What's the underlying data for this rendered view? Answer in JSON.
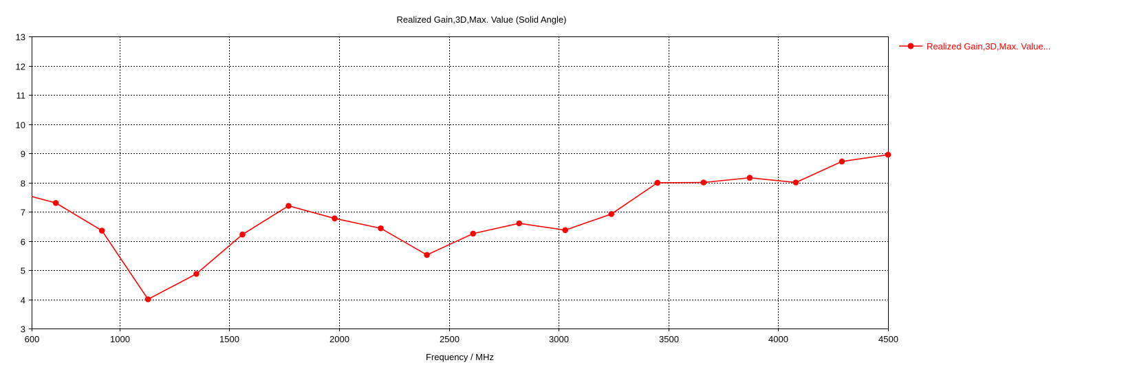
{
  "chart_data": {
    "type": "line",
    "title": "Realized Gain,3D,Max. Value (Solid Angle)",
    "xlabel": "Frequency / MHz",
    "ylabel": "",
    "xlim": [
      600,
      4500
    ],
    "ylim": [
      3,
      13
    ],
    "x_ticks": [
      "600",
      "1000",
      "1500",
      "2000",
      "2500",
      "3000",
      "3500",
      "4000",
      "4500"
    ],
    "y_ticks": [
      "3",
      "4",
      "5",
      "6",
      "7",
      "8",
      "9",
      "10",
      "11",
      "12",
      "13"
    ],
    "x_tick_values": [
      600,
      1000,
      1500,
      2000,
      2500,
      3000,
      3500,
      4000,
      4500
    ],
    "y_tick_values": [
      3,
      4,
      5,
      6,
      7,
      8,
      9,
      10,
      11,
      12,
      13
    ],
    "grid": true,
    "legend_position": "right",
    "color": "#ff0000",
    "series": [
      {
        "name": "Realized Gain,3D,Max. Value...",
        "line_start": {
          "x": 600,
          "y": 7.52
        },
        "x": [
          710,
          920,
          1130,
          1350,
          1560,
          1770,
          1980,
          2190,
          2400,
          2610,
          2820,
          3030,
          3240,
          3450,
          3660,
          3870,
          4080,
          4290,
          4500
        ],
        "y": [
          7.3,
          6.35,
          4.0,
          4.87,
          6.22,
          7.2,
          6.77,
          6.43,
          5.52,
          6.25,
          6.6,
          6.37,
          6.92,
          7.99,
          8.0,
          8.16,
          8.0,
          8.72,
          8.95
        ]
      }
    ]
  }
}
